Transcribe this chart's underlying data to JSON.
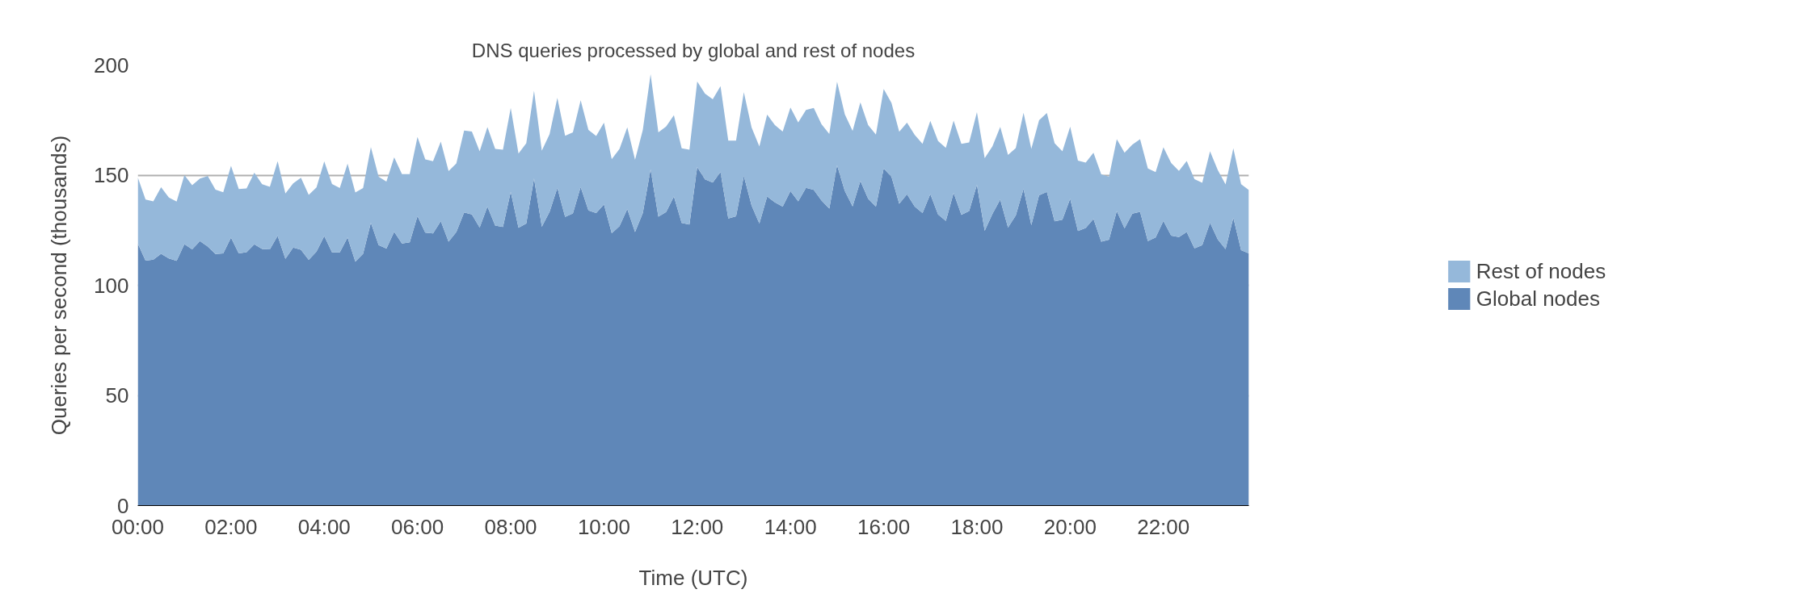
{
  "chart_data": {
    "type": "area",
    "stacked": true,
    "title": "DNS queries processed by global and rest of nodes",
    "xlabel": "Time (UTC)",
    "ylabel": "Queries per second (thousands)",
    "x": [
      0,
      0.1667,
      0.3333,
      0.5,
      0.6667,
      0.8333,
      1,
      1.1667,
      1.3333,
      1.5,
      1.6667,
      1.8333,
      2,
      2.1667,
      2.3333,
      2.5,
      2.6667,
      2.8333,
      3,
      3.1667,
      3.3333,
      3.5,
      3.6667,
      3.8333,
      4,
      4.1667,
      4.3333,
      4.5,
      4.6667,
      4.8333,
      5,
      5.1667,
      5.3333,
      5.5,
      5.6667,
      5.8333,
      6,
      6.1667,
      6.3333,
      6.5,
      6.6667,
      6.8333,
      7,
      7.1667,
      7.3333,
      7.5,
      7.6667,
      7.8333,
      8,
      8.1667,
      8.3333,
      8.5,
      8.6667,
      8.8333,
      9,
      9.1667,
      9.3333,
      9.5,
      9.6667,
      9.8333,
      10,
      10.1667,
      10.3333,
      10.5,
      10.6667,
      10.8333,
      11,
      11.1667,
      11.3333,
      11.5,
      11.6667,
      11.8333,
      12,
      12.1667,
      12.3333,
      12.5,
      12.6667,
      12.8333,
      13,
      13.1667,
      13.3333,
      13.5,
      13.6667,
      13.8333,
      14,
      14.1667,
      14.3333,
      14.5,
      14.6667,
      14.8333,
      15,
      15.1667,
      15.3333,
      15.5,
      15.6667,
      15.8333,
      16,
      16.1667,
      16.3333,
      16.5,
      16.6667,
      16.8333,
      17,
      17.1667,
      17.3333,
      17.5,
      17.6667,
      17.8333,
      18,
      18.1667,
      18.3333,
      18.5,
      18.6667,
      18.8333,
      19,
      19.1667,
      19.3333,
      19.5,
      19.6667,
      19.8333,
      20,
      20.1667,
      20.3333,
      20.5,
      20.6667,
      20.8333,
      21,
      21.1667,
      21.3333,
      21.5,
      21.6667,
      21.8333,
      22,
      22.1667,
      22.3333,
      22.5,
      22.6667,
      22.8333,
      23,
      23.1667,
      23.3333,
      23.5,
      23.6667,
      23.8333
    ],
    "series": [
      {
        "name": "Global nodes",
        "color": "#5f87b8",
        "values": [
          119.0,
          111.2,
          111.6,
          114.3,
          112.2,
          111.1,
          118.7,
          116.3,
          120.1,
          117.6,
          114.2,
          114.5,
          121.6,
          114.5,
          115.0,
          118.6,
          116.5,
          116.3,
          122.4,
          112.0,
          117.1,
          116.1,
          111.5,
          115.3,
          122.3,
          114.9,
          114.9,
          121.7,
          110.7,
          114.3,
          128.4,
          118.2,
          116.7,
          124.3,
          119.0,
          119.5,
          131.4,
          123.9,
          123.5,
          129.1,
          119.8,
          124.2,
          133.1,
          132.1,
          126.2,
          135.7,
          127.1,
          126.5,
          142.4,
          126.1,
          128.0,
          148.4,
          126.6,
          133.3,
          144.2,
          131.0,
          132.6,
          144.6,
          134.0,
          132.8,
          136.7,
          123.6,
          126.8,
          134.6,
          124.2,
          132.8,
          152.7,
          131.1,
          133.2,
          140.3,
          128.3,
          127.6,
          153.7,
          148.1,
          146.6,
          151.4,
          130.3,
          131.3,
          149.6,
          136.2,
          128.0,
          140.3,
          137.6,
          135.7,
          142.8,
          138.1,
          144.2,
          143.3,
          138.5,
          134.8,
          154.5,
          142.8,
          135.8,
          147.3,
          139.3,
          135.7,
          153.0,
          149.3,
          137.0,
          141.3,
          135.7,
          132.8,
          141.4,
          132.1,
          129.2,
          141.9,
          132.0,
          133.7,
          145.6,
          124.7,
          132.4,
          138.9,
          126.2,
          131.7,
          143.8,
          127.3,
          140.8,
          142.4,
          129.0,
          129.8,
          139.3,
          124.6,
          126.0,
          130.1,
          119.8,
          120.7,
          133.7,
          125.8,
          132.5,
          133.3,
          120.1,
          121.7,
          129.2,
          122.5,
          121.9,
          124.2,
          116.8,
          118.2,
          128.4,
          120.8,
          116.4,
          130.7,
          115.9,
          114.5
        ]
      },
      {
        "name": "Rest of nodes",
        "color": "#95b8da",
        "values": [
          30.0,
          27.7,
          26.5,
          30.2,
          27.6,
          26.9,
          31.3,
          29.1,
          28.3,
          32.0,
          29.2,
          27.7,
          32.6,
          29.2,
          29.0,
          32.5,
          29.4,
          28.4,
          33.9,
          29.7,
          29.1,
          32.7,
          29.5,
          29.1,
          33.9,
          31.1,
          29.2,
          33.5,
          31.4,
          29.8,
          34.3,
          31.1,
          30.4,
          33.8,
          31.5,
          31.0,
          35.9,
          33.2,
          32.8,
          36.1,
          32.0,
          31.1,
          37.1,
          37.7,
          34.6,
          36.1,
          34.8,
          35.0,
          38.1,
          33.7,
          36.5,
          39.9,
          34.5,
          35.3,
          40.9,
          36.9,
          36.8,
          39.4,
          36.5,
          35.0,
          37.1,
          33.6,
          35.1,
          37.1,
          32.8,
          37.7,
          43.1,
          38.3,
          38.9,
          36.9,
          33.9,
          33.9,
          38.8,
          38.9,
          37.8,
          39.0,
          35.4,
          34.4,
          38.0,
          35.4,
          35.0,
          37.2,
          35.1,
          34.1,
          37.9,
          35.8,
          35.4,
          37.2,
          34.6,
          33.9,
          37.9,
          34.8,
          34.3,
          35.8,
          33.4,
          32.7,
          36.1,
          33.5,
          32.7,
          32.5,
          32.5,
          31.4,
          33.2,
          33.4,
          33.2,
          32.8,
          32.2,
          31.1,
          33.0,
          33.0,
          30.7,
          33.0,
          33.0,
          30.6,
          34.5,
          34.6,
          34.1,
          35.8,
          35.5,
          31.0,
          32.7,
          32.0,
          29.7,
          30.1,
          30.6,
          28.6,
          32.6,
          34.4,
          31.3,
          33.0,
          32.9,
          29.7,
          33.4,
          33.0,
          30.0,
          32.2,
          31.4,
          28.3,
          32.4,
          31.5,
          29.4,
          31.5,
          30.0,
          28.7
        ]
      }
    ],
    "xlim": [
      0,
      23.8333
    ],
    "xticks": [
      {
        "value": 0,
        "label": "00:00"
      },
      {
        "value": 2,
        "label": "02:00"
      },
      {
        "value": 4,
        "label": "04:00"
      },
      {
        "value": 6,
        "label": "06:00"
      },
      {
        "value": 8,
        "label": "08:00"
      },
      {
        "value": 10,
        "label": "10:00"
      },
      {
        "value": 12,
        "label": "12:00"
      },
      {
        "value": 14,
        "label": "14:00"
      },
      {
        "value": 16,
        "label": "16:00"
      },
      {
        "value": 18,
        "label": "18:00"
      },
      {
        "value": 20,
        "label": "20:00"
      },
      {
        "value": 22,
        "label": "22:00"
      }
    ],
    "ylim": [
      0,
      200
    ],
    "yticks": [
      0,
      50,
      100,
      150,
      200
    ],
    "grid": "y",
    "legend": "right"
  }
}
